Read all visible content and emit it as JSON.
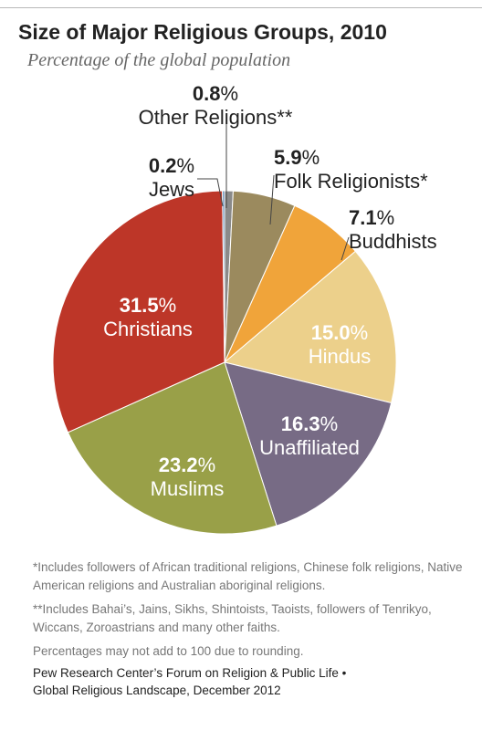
{
  "title": "Size of Major Religious Groups, 2010",
  "subtitle": "Percentage of the global population",
  "chart_data": {
    "type": "pie",
    "title": "Size of Major Religious Groups, 2010",
    "subtitle": "Percentage of the global population",
    "unit": "%",
    "slices": [
      {
        "label": "Other Religions**",
        "value": 0.8,
        "value_text": "0.8",
        "color": "#8a8a8a"
      },
      {
        "label": "Folk Religionists*",
        "value": 5.9,
        "value_text": "5.9",
        "color": "#9b8a5e"
      },
      {
        "label": "Buddhists",
        "value": 7.1,
        "value_text": "7.1",
        "color": "#f0a43a"
      },
      {
        "label": "Hindus",
        "value": 15.0,
        "value_text": "15.0",
        "color": "#ecd08b"
      },
      {
        "label": "Unaffiliated",
        "value": 16.3,
        "value_text": "16.3",
        "color": "#776b85"
      },
      {
        "label": "Muslims",
        "value": 23.2,
        "value_text": "23.2",
        "color": "#99a048"
      },
      {
        "label": "Christians",
        "value": 31.5,
        "value_text": "31.5",
        "color": "#bd3628"
      },
      {
        "label": "Jews",
        "value": 0.2,
        "value_text": "0.2",
        "color": "#5a86b4"
      }
    ]
  },
  "notes": {
    "folk": "*Includes followers of African traditional religions, Chinese folk religions, Native American religions and Australian aboriginal religions.",
    "other": "**Includes Bahai’s, Jains, Sikhs, Shintoists, Taoists, followers of Tenrikyo, Wiccans, Zoroastrians and many other faiths.",
    "rounding": "Percentages may not add to 100 due to rounding."
  },
  "source": {
    "line1": "Pew Research Center’s Forum on Religion & Public Life •",
    "line2": "Global Religious Landscape, December 2012"
  }
}
